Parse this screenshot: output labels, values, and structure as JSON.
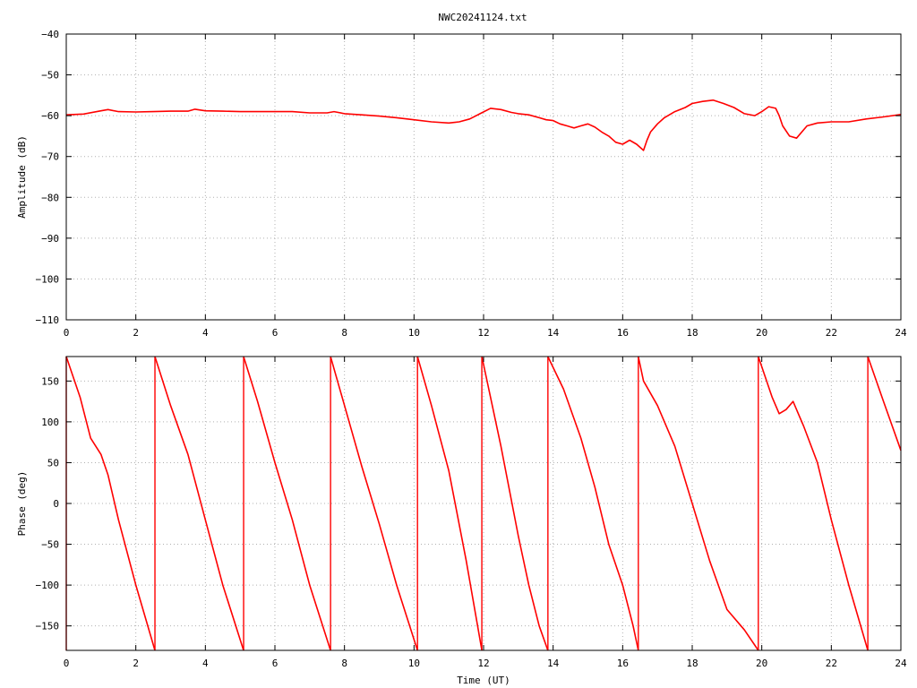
{
  "title": "NWC20241124.txt",
  "chart_data": [
    {
      "type": "line",
      "xlabel": "",
      "ylabel": "Amplitude (dB)",
      "xlim": [
        0,
        24
      ],
      "ylim": [
        -110,
        -40
      ],
      "xticks": [
        0,
        2,
        4,
        6,
        8,
        10,
        12,
        14,
        16,
        18,
        20,
        22,
        24
      ],
      "yticks": [
        -110,
        -100,
        -90,
        -80,
        -70,
        -60,
        -50,
        -40
      ],
      "color": "#ff0000",
      "series": [
        {
          "x": [
            0,
            0.5,
            1.0,
            1.2,
            1.5,
            2.0,
            2.5,
            3.0,
            3.5,
            3.7,
            4.0,
            4.5,
            5.0,
            5.5,
            6.0,
            6.5,
            7.0,
            7.5,
            7.7,
            8.0,
            8.5,
            9.0,
            9.5,
            10.0,
            10.5,
            11.0,
            11.3,
            11.6,
            11.9,
            12.2,
            12.5,
            12.8,
            13.0,
            13.3,
            13.6,
            13.8,
            14.0,
            14.2,
            14.4,
            14.6,
            14.8,
            15.0,
            15.2,
            15.4,
            15.6,
            15.8,
            16.0,
            16.2,
            16.4,
            16.6,
            16.7,
            16.8,
            17.0,
            17.2,
            17.5,
            17.8,
            18.0,
            18.3,
            18.6,
            18.9,
            19.2,
            19.5,
            19.8,
            20.0,
            20.2,
            20.4,
            20.5,
            20.6,
            20.8,
            21.0,
            21.3,
            21.6,
            22.0,
            22.5,
            23.0,
            23.5,
            24.0
          ],
          "y": [
            -59.8,
            -59.6,
            -58.8,
            -58.5,
            -59.0,
            -59.1,
            -59.0,
            -58.9,
            -58.9,
            -58.4,
            -58.8,
            -58.9,
            -59.0,
            -59.0,
            -59.0,
            -59.0,
            -59.3,
            -59.3,
            -59.0,
            -59.5,
            -59.8,
            -60.1,
            -60.5,
            -61.0,
            -61.5,
            -61.8,
            -61.5,
            -60.8,
            -59.5,
            -58.2,
            -58.5,
            -59.2,
            -59.5,
            -59.8,
            -60.5,
            -61.0,
            -61.2,
            -62.0,
            -62.5,
            -63.0,
            -62.5,
            -62.0,
            -62.8,
            -64.0,
            -65.0,
            -66.5,
            -67.0,
            -66.0,
            -67.0,
            -68.5,
            -66.0,
            -64.0,
            -62.0,
            -60.5,
            -59.0,
            -58.0,
            -57.0,
            -56.5,
            -56.2,
            -57.0,
            -58.0,
            -59.5,
            -60.0,
            -59.0,
            -57.8,
            -58.2,
            -60.0,
            -62.5,
            -65.0,
            -65.5,
            -62.5,
            -61.8,
            -61.5,
            -61.5,
            -60.8,
            -60.3,
            -59.7
          ]
        }
      ]
    },
    {
      "type": "line",
      "xlabel": "Time (UT)",
      "ylabel": "Phase (deg)",
      "xlim": [
        0,
        24
      ],
      "ylim": [
        -180,
        180
      ],
      "xticks": [
        0,
        2,
        4,
        6,
        8,
        10,
        12,
        14,
        16,
        18,
        20,
        22,
        24
      ],
      "yticks": [
        -150,
        -100,
        -50,
        0,
        50,
        100,
        150
      ],
      "color": "#ff0000",
      "series": [
        {
          "segments": [
            {
              "x": [
                0.0,
                0.4,
                0.7,
                1.0,
                1.2,
                1.5,
                2.0,
                2.55
              ],
              "y": [
                180,
                130,
                80,
                60,
                35,
                -20,
                -100,
                -180
              ]
            },
            {
              "x": [
                2.55,
                3.0,
                3.5,
                4.0,
                4.5,
                5.1
              ],
              "y": [
                180,
                120,
                60,
                -20,
                -100,
                -180
              ]
            },
            {
              "x": [
                5.1,
                5.5,
                6.0,
                6.5,
                7.0,
                7.6
              ],
              "y": [
                180,
                125,
                50,
                -20,
                -100,
                -180
              ]
            },
            {
              "x": [
                7.6,
                8.0,
                8.5,
                9.0,
                9.5,
                10.1
              ],
              "y": [
                180,
                120,
                45,
                -25,
                -100,
                -180
              ]
            },
            {
              "x": [
                10.1,
                10.5,
                11.0,
                11.5,
                11.95
              ],
              "y": [
                180,
                120,
                40,
                -70,
                -180
              ]
            },
            {
              "x": [
                11.95,
                12.5,
                13.0,
                13.3,
                13.6,
                13.85
              ],
              "y": [
                180,
                70,
                -40,
                -100,
                -150,
                -180
              ]
            },
            {
              "x": [
                13.85,
                14.3,
                14.8,
                15.2,
                15.6,
                16.0,
                16.3,
                16.45
              ],
              "y": [
                180,
                140,
                80,
                20,
                -50,
                -100,
                -150,
                -180
              ]
            },
            {
              "x": [
                16.45,
                16.6,
                17.0,
                17.5,
                18.0,
                18.5,
                19.0,
                19.5,
                19.9
              ],
              "y": [
                180,
                150,
                120,
                70,
                0,
                -70,
                -130,
                -155,
                -180
              ]
            },
            {
              "x": [
                19.9,
                20.3,
                20.5,
                20.7,
                20.9,
                21.2,
                21.6,
                22.0,
                22.5,
                23.05
              ],
              "y": [
                180,
                130,
                110,
                115,
                125,
                95,
                50,
                -20,
                -100,
                -180
              ]
            },
            {
              "x": [
                23.05,
                23.5,
                24.0
              ],
              "y": [
                180,
                125,
                65
              ]
            }
          ]
        }
      ]
    }
  ]
}
